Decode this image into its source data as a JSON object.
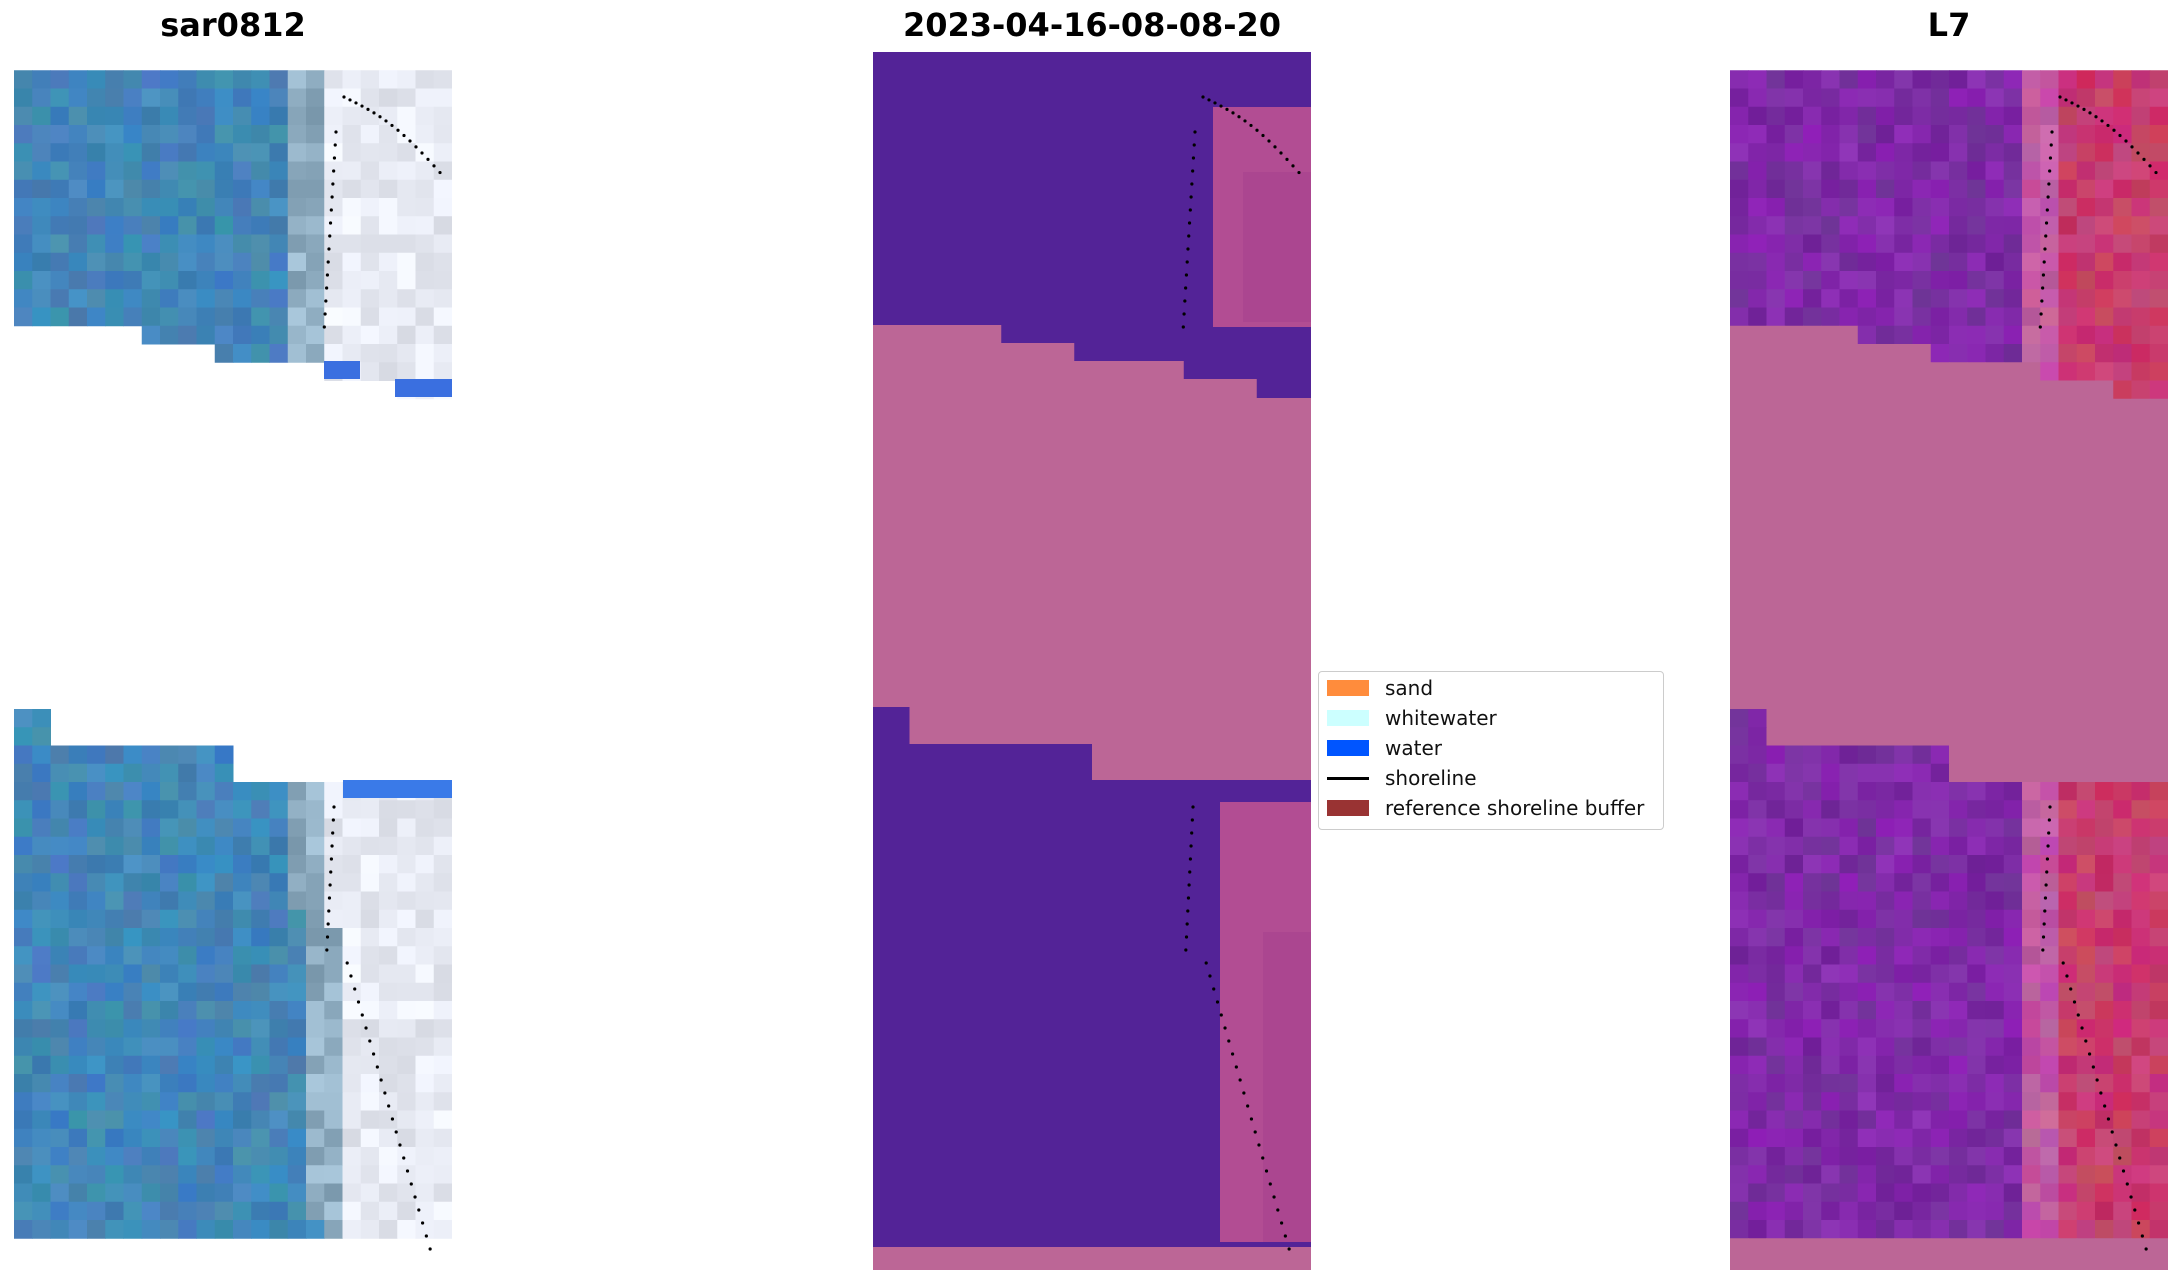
{
  "titles": {
    "left": "sar0812",
    "middle": "2023-04-16-08-08-20",
    "right": "L7"
  },
  "legend": {
    "items": [
      {
        "label": "sand",
        "color": "#ff8c3c",
        "kind": "patch"
      },
      {
        "label": "whitewater",
        "color": "#ccffff",
        "kind": "patch"
      },
      {
        "label": "water",
        "color": "#0055ff",
        "kind": "patch"
      },
      {
        "label": "shoreline",
        "color": "#000000",
        "kind": "line"
      },
      {
        "label": "reference shoreline buffer",
        "color": "#993333",
        "kind": "patch"
      }
    ]
  },
  "colors": {
    "masked_fill": "#bc6696",
    "class_water_dark": "#532397",
    "rgb_water": "#4a8ab8",
    "rgb_white": "#e8eef8",
    "index_purple": "#7e2ca0",
    "index_red": "#c4245a"
  }
}
